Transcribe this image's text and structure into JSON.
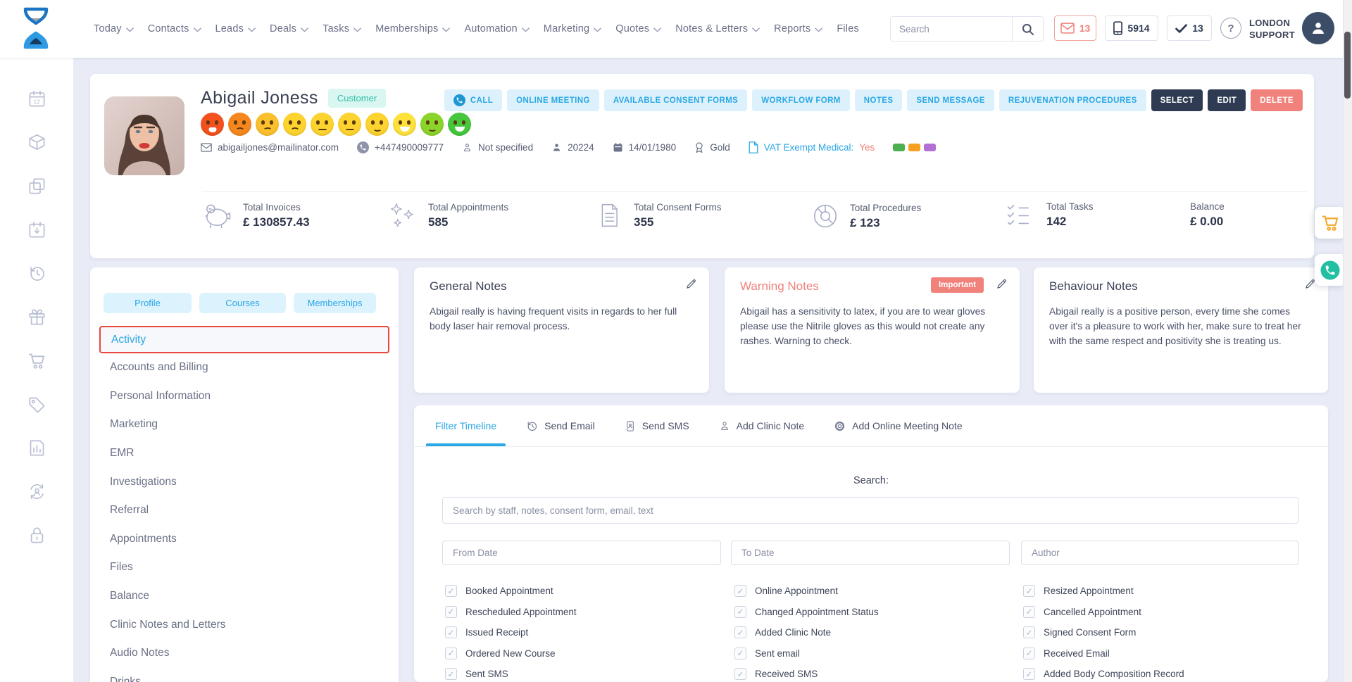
{
  "header": {
    "nav": [
      {
        "label": "Today",
        "chevron": true
      },
      {
        "label": "Contacts",
        "chevron": true
      },
      {
        "label": "Leads",
        "chevron": true
      },
      {
        "label": "Deals",
        "chevron": true
      },
      {
        "label": "Tasks",
        "chevron": true
      },
      {
        "label": "Memberships",
        "chevron": true
      },
      {
        "label": "Automation",
        "chevron": true
      },
      {
        "label": "Marketing",
        "chevron": true
      },
      {
        "label": "Quotes",
        "chevron": true
      },
      {
        "label": "Notes & Letters",
        "chevron": true
      },
      {
        "label": "Reports",
        "chevron": true
      },
      {
        "label": "Files",
        "chevron": false
      }
    ],
    "search_placeholder": "Search",
    "mail_count": "13",
    "sms_count": "5914",
    "task_count": "13",
    "support_line1": "LONDON",
    "support_line2": "SUPPORT"
  },
  "sidebar": {
    "icons": [
      "calendar-date-icon",
      "package-icon",
      "copy-pages-icon",
      "calendar-import-icon",
      "history-icon",
      "gift-icon",
      "shopping-cart-icon",
      "price-tag-icon",
      "report-chart-icon",
      "account-sync-icon",
      "lock-icon"
    ]
  },
  "profile": {
    "name": "Abigail Joness",
    "type_badge": "Customer",
    "email": "abigailjones@mailinator.com",
    "phone": "+447490009777",
    "gender": "Not specified",
    "customer_id": "20224",
    "dob": "14/01/1980",
    "tier": "Gold",
    "vat_label": "VAT Exempt Medical:",
    "vat_value": "Yes",
    "tag_colors": [
      "#4caf50",
      "#f5a021",
      "#b36fd4"
    ],
    "mood_scale": [
      {
        "color": "#f4511e",
        "mouth": "frown-open"
      },
      {
        "color": "#f6871f",
        "mouth": "frown"
      },
      {
        "color": "#fbc02d",
        "mouth": "frown"
      },
      {
        "color": "#fdd330",
        "mouth": "frown"
      },
      {
        "color": "#fdd330",
        "mouth": "neutral"
      },
      {
        "color": "#fdd330",
        "mouth": "neutral"
      },
      {
        "color": "#fdd330",
        "mouth": "smile"
      },
      {
        "color": "#fde23c",
        "mouth": "smile-open"
      },
      {
        "color": "#8bd42b",
        "mouth": "smile"
      },
      {
        "color": "#46c73d",
        "mouth": "smile-open"
      }
    ],
    "actions": [
      {
        "label": "CALL",
        "style": "light",
        "icon": "call-circle"
      },
      {
        "label": "ONLINE MEETING",
        "style": "light"
      },
      {
        "label": "AVAILABLE CONSENT FORMS",
        "style": "light"
      },
      {
        "label": "WORKFLOW FORM",
        "style": "light"
      },
      {
        "label": "NOTES",
        "style": "light"
      },
      {
        "label": "SEND MESSAGE",
        "style": "light"
      },
      {
        "label": "REJUVENATION PROCEDURES",
        "style": "light"
      },
      {
        "label": "SELECT",
        "style": "dark"
      },
      {
        "label": "EDIT",
        "style": "dark"
      },
      {
        "label": "DELETE",
        "style": "danger"
      }
    ]
  },
  "stats": [
    {
      "icon": "piggy-bank-icon",
      "label": "Total Invoices",
      "value": "£ 130857.43"
    },
    {
      "icon": "sparkles-icon",
      "label": "Total Appointments",
      "value": "585"
    },
    {
      "icon": "consent-form-icon",
      "label": "Total Consent Forms",
      "value": "355"
    },
    {
      "icon": "procedures-donut-icon",
      "label": "Total Procedures",
      "value": "£ 123"
    },
    {
      "icon": "tasks-checklist-icon",
      "label": "Total Tasks",
      "value": "142"
    },
    {
      "icon": "",
      "label": "Balance",
      "value": "£ 0.00"
    }
  ],
  "left_panel": {
    "tabs": [
      "Profile",
      "Courses",
      "Memberships"
    ],
    "items": [
      {
        "label": "Activity",
        "active": true
      },
      {
        "label": "Accounts and Billing",
        "active": false
      },
      {
        "label": "Personal Information",
        "active": false
      },
      {
        "label": "Marketing",
        "active": false
      },
      {
        "label": "EMR",
        "active": false
      },
      {
        "label": "Investigations",
        "active": false
      },
      {
        "label": "Referral",
        "active": false
      },
      {
        "label": "Appointments",
        "active": false
      },
      {
        "label": "Files",
        "active": false
      },
      {
        "label": "Balance",
        "active": false
      },
      {
        "label": "Clinic Notes and Letters",
        "active": false
      },
      {
        "label": "Audio Notes",
        "active": false
      },
      {
        "label": "Drinks",
        "active": false
      }
    ]
  },
  "notes_cards": [
    {
      "title": "General Notes",
      "badge": "",
      "warning": false,
      "text": "Abigail really is having frequent visits in regards to her full body laser hair removal process."
    },
    {
      "title": "Warning Notes",
      "badge": "Important",
      "warning": true,
      "text": "Abigail has a sensitivity to latex, if you are to wear gloves please use the Nitrile gloves as this would not create any rashes. Warning to check."
    },
    {
      "title": "Behaviour Notes",
      "badge": "",
      "warning": false,
      "text": "Abigail really is a positive person, every time she comes over it's a pleasure to work with her, make sure to treat her with the same respect and positivity she is treating us."
    }
  ],
  "timeline": {
    "tabs": [
      {
        "label": "Filter Timeline",
        "icon": "",
        "active": true
      },
      {
        "label": "Send Email",
        "icon": "history-clock-icon",
        "active": false
      },
      {
        "label": "Send SMS",
        "icon": "sms-phone-icon",
        "active": false
      },
      {
        "label": "Add Clinic Note",
        "icon": "person-icon",
        "active": false
      },
      {
        "label": "Add Online Meeting Note",
        "icon": "gear-icon",
        "active": false
      }
    ],
    "search_label": "Search:",
    "search_placeholder": "Search by staff, notes, consent form, email, text",
    "date_fields": [
      {
        "placeholder": "From Date"
      },
      {
        "placeholder": "To Date"
      },
      {
        "placeholder": "Author"
      }
    ],
    "filter_columns": [
      [
        {
          "label": "Booked Appointment",
          "checked": true
        },
        {
          "label": "Rescheduled Appointment",
          "checked": true
        },
        {
          "label": "Issued Receipt",
          "checked": true
        },
        {
          "label": "Ordered New Course",
          "checked": true
        },
        {
          "label": "Sent SMS",
          "checked": true
        }
      ],
      [
        {
          "label": "Online Appointment",
          "checked": true
        },
        {
          "label": "Changed Appointment Status",
          "checked": true
        },
        {
          "label": "Added Clinic Note",
          "checked": true
        },
        {
          "label": "Sent email",
          "checked": true
        },
        {
          "label": "Received SMS",
          "checked": true
        }
      ],
      [
        {
          "label": "Resized Appointment",
          "checked": true
        },
        {
          "label": "Cancelled Appointment",
          "checked": true
        },
        {
          "label": "Signed Consent Form",
          "checked": true
        },
        {
          "label": "Received Email",
          "checked": true
        },
        {
          "label": "Added Body Composition Record",
          "checked": true
        }
      ]
    ]
  }
}
